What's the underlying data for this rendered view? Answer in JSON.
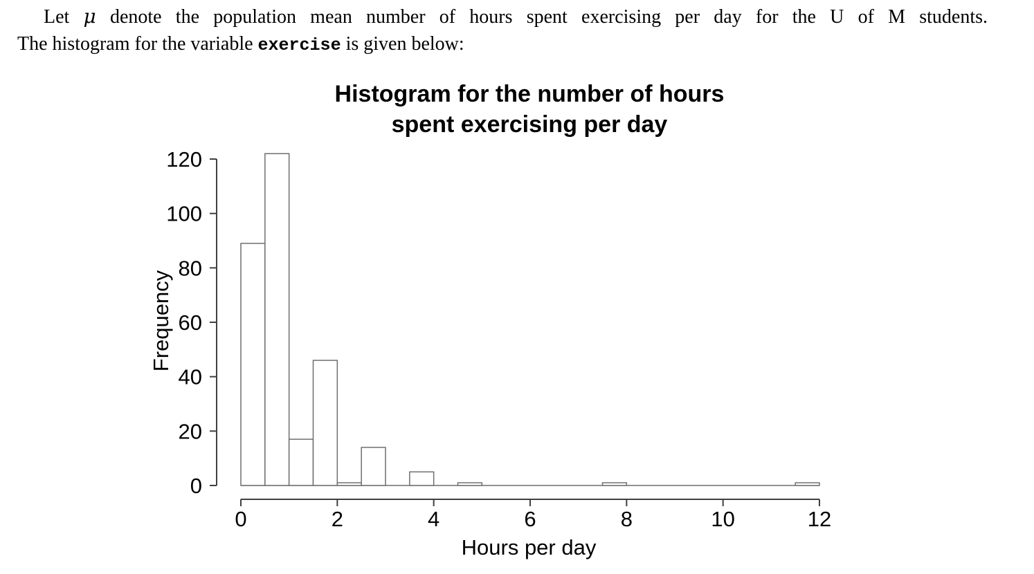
{
  "intro": {
    "line1_pre": "Let",
    "mu": "μ",
    "line1_post": "denote the population mean number of hours spent exercising per day for the U of M students.",
    "line2_pre": "The histogram for the variable",
    "code_word": "exercise",
    "line2_post": "is given below:"
  },
  "chart_data": {
    "type": "bar",
    "title_line1": "Histogram for the number of hours",
    "title_line2": "spent exercising per day",
    "xlabel": "Hours per day",
    "ylabel": "Frequency",
    "bin_start": 0,
    "bin_width": 0.5,
    "bins": [
      89,
      122,
      17,
      46,
      1,
      14,
      0,
      5,
      0,
      1,
      0,
      0,
      0,
      0,
      0,
      1,
      0,
      0,
      0,
      0,
      0,
      0,
      0,
      1
    ],
    "xticks": [
      0,
      2,
      4,
      6,
      8,
      10,
      12
    ],
    "yticks": [
      0,
      20,
      40,
      60,
      80,
      100,
      120
    ],
    "xlim": [
      0,
      12
    ],
    "ylim": [
      0,
      122
    ],
    "grid": "off",
    "legend": "none",
    "bar_fill": "#ffffff",
    "bar_stroke": "#6e6e6e",
    "axis_color": "#3f3f3f",
    "text_color": "#000000"
  }
}
